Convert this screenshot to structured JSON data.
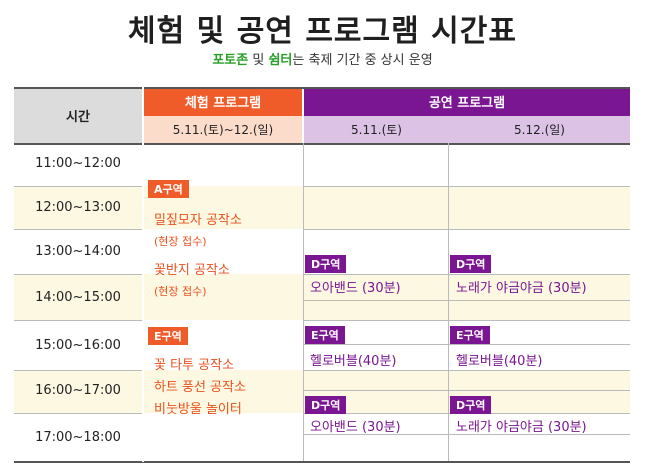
{
  "title": "체험 및 공연 프로그램 시간표",
  "subtitle": {
    "zone1": "포토존",
    "sep": " 및 ",
    "zone2": "쉼터",
    "rest": "는 축제 기간 중 상시 운영"
  },
  "header": {
    "time_label": "시간",
    "experience_label": "체험 프로그램",
    "performance_label": "공연 프로그램",
    "experience_dates": "5.11.(토)~12.(일)",
    "perf_date_1": "5.11.(토)",
    "perf_date_2": "5.12.(일)"
  },
  "times": [
    "11:00~12:00",
    "12:00~13:00",
    "13:00~14:00",
    "14:00~15:00",
    "15:00~16:00",
    "16:00~17:00",
    "17:00~18:00"
  ],
  "experience": {
    "zone_a": "A구역",
    "a_item1": "밀짚모자 공작소",
    "a_item1_note": "(현장 접수)",
    "a_item2": "꽃반지 공작소",
    "a_item2_note": "(현장 접수)",
    "zone_e": "E구역",
    "e_item1": "꽃 타투 공작소",
    "e_item2": "하트 풍선 공작소",
    "e_item3": "비눗방울 놀이터"
  },
  "performance": {
    "day1": [
      {
        "zone": "D구역",
        "show": "오아밴드 (30분)"
      },
      {
        "zone": "E구역",
        "show": "헬로버블(40분)"
      },
      {
        "zone": "D구역",
        "show": "오아밴드 (30분)"
      }
    ],
    "day2": [
      {
        "zone": "D구역",
        "show": "노래가 야금야금 (30분)"
      },
      {
        "zone": "E구역",
        "show": "헬로버블(40분)"
      },
      {
        "zone": "D구역",
        "show": "노래가 야금야금 (30분)"
      }
    ]
  },
  "colors": {
    "experience": "#f05b2a",
    "performance": "#7a1691",
    "highlight": "#2aa02a",
    "band": "#fdf8e2"
  }
}
